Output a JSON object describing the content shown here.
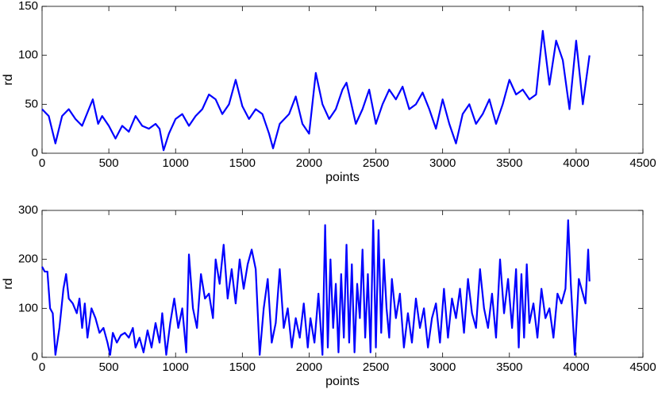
{
  "chart_data": [
    {
      "type": "line",
      "color": "#0000ff",
      "xlabel": "points",
      "ylabel": "rd",
      "xlim": [
        0,
        4500
      ],
      "ylim": [
        0,
        150
      ],
      "xticks": [
        0,
        500,
        1000,
        1500,
        2000,
        2500,
        3000,
        3500,
        4000,
        4500
      ],
      "yticks": [
        0,
        50,
        100,
        150
      ],
      "x": [
        0,
        50,
        100,
        150,
        200,
        250,
        300,
        350,
        380,
        420,
        450,
        500,
        550,
        600,
        650,
        700,
        750,
        800,
        850,
        880,
        910,
        950,
        1000,
        1050,
        1100,
        1150,
        1200,
        1250,
        1300,
        1350,
        1400,
        1450,
        1500,
        1550,
        1600,
        1650,
        1700,
        1730,
        1780,
        1850,
        1900,
        1950,
        2000,
        2050,
        2100,
        2150,
        2200,
        2250,
        2280,
        2350,
        2400,
        2450,
        2500,
        2550,
        2600,
        2650,
        2700,
        2750,
        2800,
        2850,
        2900,
        2950,
        3000,
        3050,
        3100,
        3150,
        3200,
        3250,
        3300,
        3350,
        3400,
        3450,
        3500,
        3550,
        3600,
        3650,
        3700,
        3750,
        3800,
        3850,
        3900,
        3950,
        4000,
        4050,
        4100
      ],
      "values": [
        45,
        38,
        10,
        38,
        45,
        35,
        28,
        45,
        55,
        30,
        38,
        28,
        15,
        28,
        22,
        38,
        28,
        25,
        30,
        25,
        3,
        20,
        35,
        40,
        28,
        38,
        45,
        60,
        55,
        40,
        50,
        75,
        48,
        35,
        45,
        40,
        20,
        5,
        30,
        40,
        58,
        30,
        20,
        82,
        50,
        35,
        45,
        65,
        72,
        30,
        45,
        65,
        30,
        50,
        65,
        55,
        68,
        45,
        50,
        62,
        45,
        25,
        55,
        30,
        10,
        40,
        50,
        30,
        40,
        55,
        30,
        50,
        75,
        60,
        65,
        55,
        60,
        125,
        70,
        115,
        95,
        45,
        115,
        50,
        100
      ]
    },
    {
      "type": "line",
      "color": "#0000ff",
      "xlabel": "points",
      "ylabel": "rd",
      "xlim": [
        0,
        4500
      ],
      "ylim": [
        0,
        300
      ],
      "xticks": [
        0,
        500,
        1000,
        1500,
        2000,
        2500,
        3000,
        3500,
        4000,
        4500
      ],
      "yticks": [
        0,
        100,
        200,
        300
      ],
      "x": [
        0,
        20,
        40,
        60,
        80,
        100,
        130,
        160,
        180,
        200,
        230,
        260,
        280,
        300,
        320,
        340,
        370,
        400,
        430,
        460,
        490,
        510,
        530,
        560,
        590,
        620,
        650,
        680,
        700,
        730,
        760,
        790,
        820,
        850,
        880,
        900,
        930,
        960,
        990,
        1020,
        1050,
        1080,
        1100,
        1130,
        1160,
        1190,
        1220,
        1250,
        1280,
        1300,
        1330,
        1360,
        1390,
        1420,
        1450,
        1480,
        1510,
        1540,
        1570,
        1600,
        1630,
        1660,
        1690,
        1720,
        1750,
        1780,
        1810,
        1840,
        1870,
        1900,
        1930,
        1960,
        1990,
        2010,
        2040,
        2070,
        2100,
        2120,
        2140,
        2160,
        2180,
        2200,
        2220,
        2240,
        2260,
        2280,
        2300,
        2320,
        2340,
        2360,
        2380,
        2400,
        2420,
        2440,
        2460,
        2480,
        2500,
        2520,
        2540,
        2560,
        2580,
        2600,
        2620,
        2650,
        2680,
        2710,
        2740,
        2770,
        2800,
        2830,
        2860,
        2890,
        2920,
        2950,
        2980,
        3010,
        3040,
        3070,
        3100,
        3130,
        3160,
        3190,
        3220,
        3250,
        3280,
        3310,
        3340,
        3370,
        3400,
        3430,
        3460,
        3490,
        3520,
        3550,
        3570,
        3590,
        3610,
        3630,
        3650,
        3680,
        3710,
        3740,
        3770,
        3800,
        3830,
        3860,
        3890,
        3920,
        3940,
        3960,
        3990,
        4020,
        4050,
        4070,
        4090,
        4100
      ],
      "values": [
        185,
        175,
        175,
        100,
        90,
        5,
        60,
        140,
        170,
        120,
        110,
        90,
        120,
        60,
        110,
        40,
        100,
        80,
        50,
        60,
        30,
        5,
        50,
        30,
        45,
        50,
        40,
        60,
        20,
        40,
        10,
        55,
        20,
        70,
        30,
        90,
        5,
        70,
        120,
        60,
        100,
        10,
        210,
        100,
        60,
        170,
        120,
        130,
        80,
        200,
        150,
        230,
        120,
        180,
        110,
        200,
        140,
        190,
        220,
        180,
        5,
        100,
        160,
        30,
        70,
        180,
        60,
        100,
        20,
        80,
        40,
        110,
        20,
        80,
        30,
        130,
        5,
        270,
        20,
        200,
        60,
        150,
        10,
        170,
        40,
        230,
        30,
        190,
        10,
        150,
        80,
        220,
        40,
        170,
        10,
        280,
        20,
        260,
        50,
        200,
        100,
        40,
        160,
        80,
        130,
        20,
        90,
        30,
        120,
        60,
        100,
        20,
        80,
        110,
        30,
        140,
        40,
        120,
        80,
        140,
        50,
        160,
        90,
        60,
        180,
        100,
        60,
        130,
        40,
        200,
        90,
        160,
        60,
        180,
        20,
        170,
        40,
        190,
        70,
        110,
        40,
        140,
        80,
        100,
        40,
        130,
        110,
        140,
        280,
        150,
        5,
        160,
        130,
        110,
        220,
        155
      ]
    }
  ]
}
